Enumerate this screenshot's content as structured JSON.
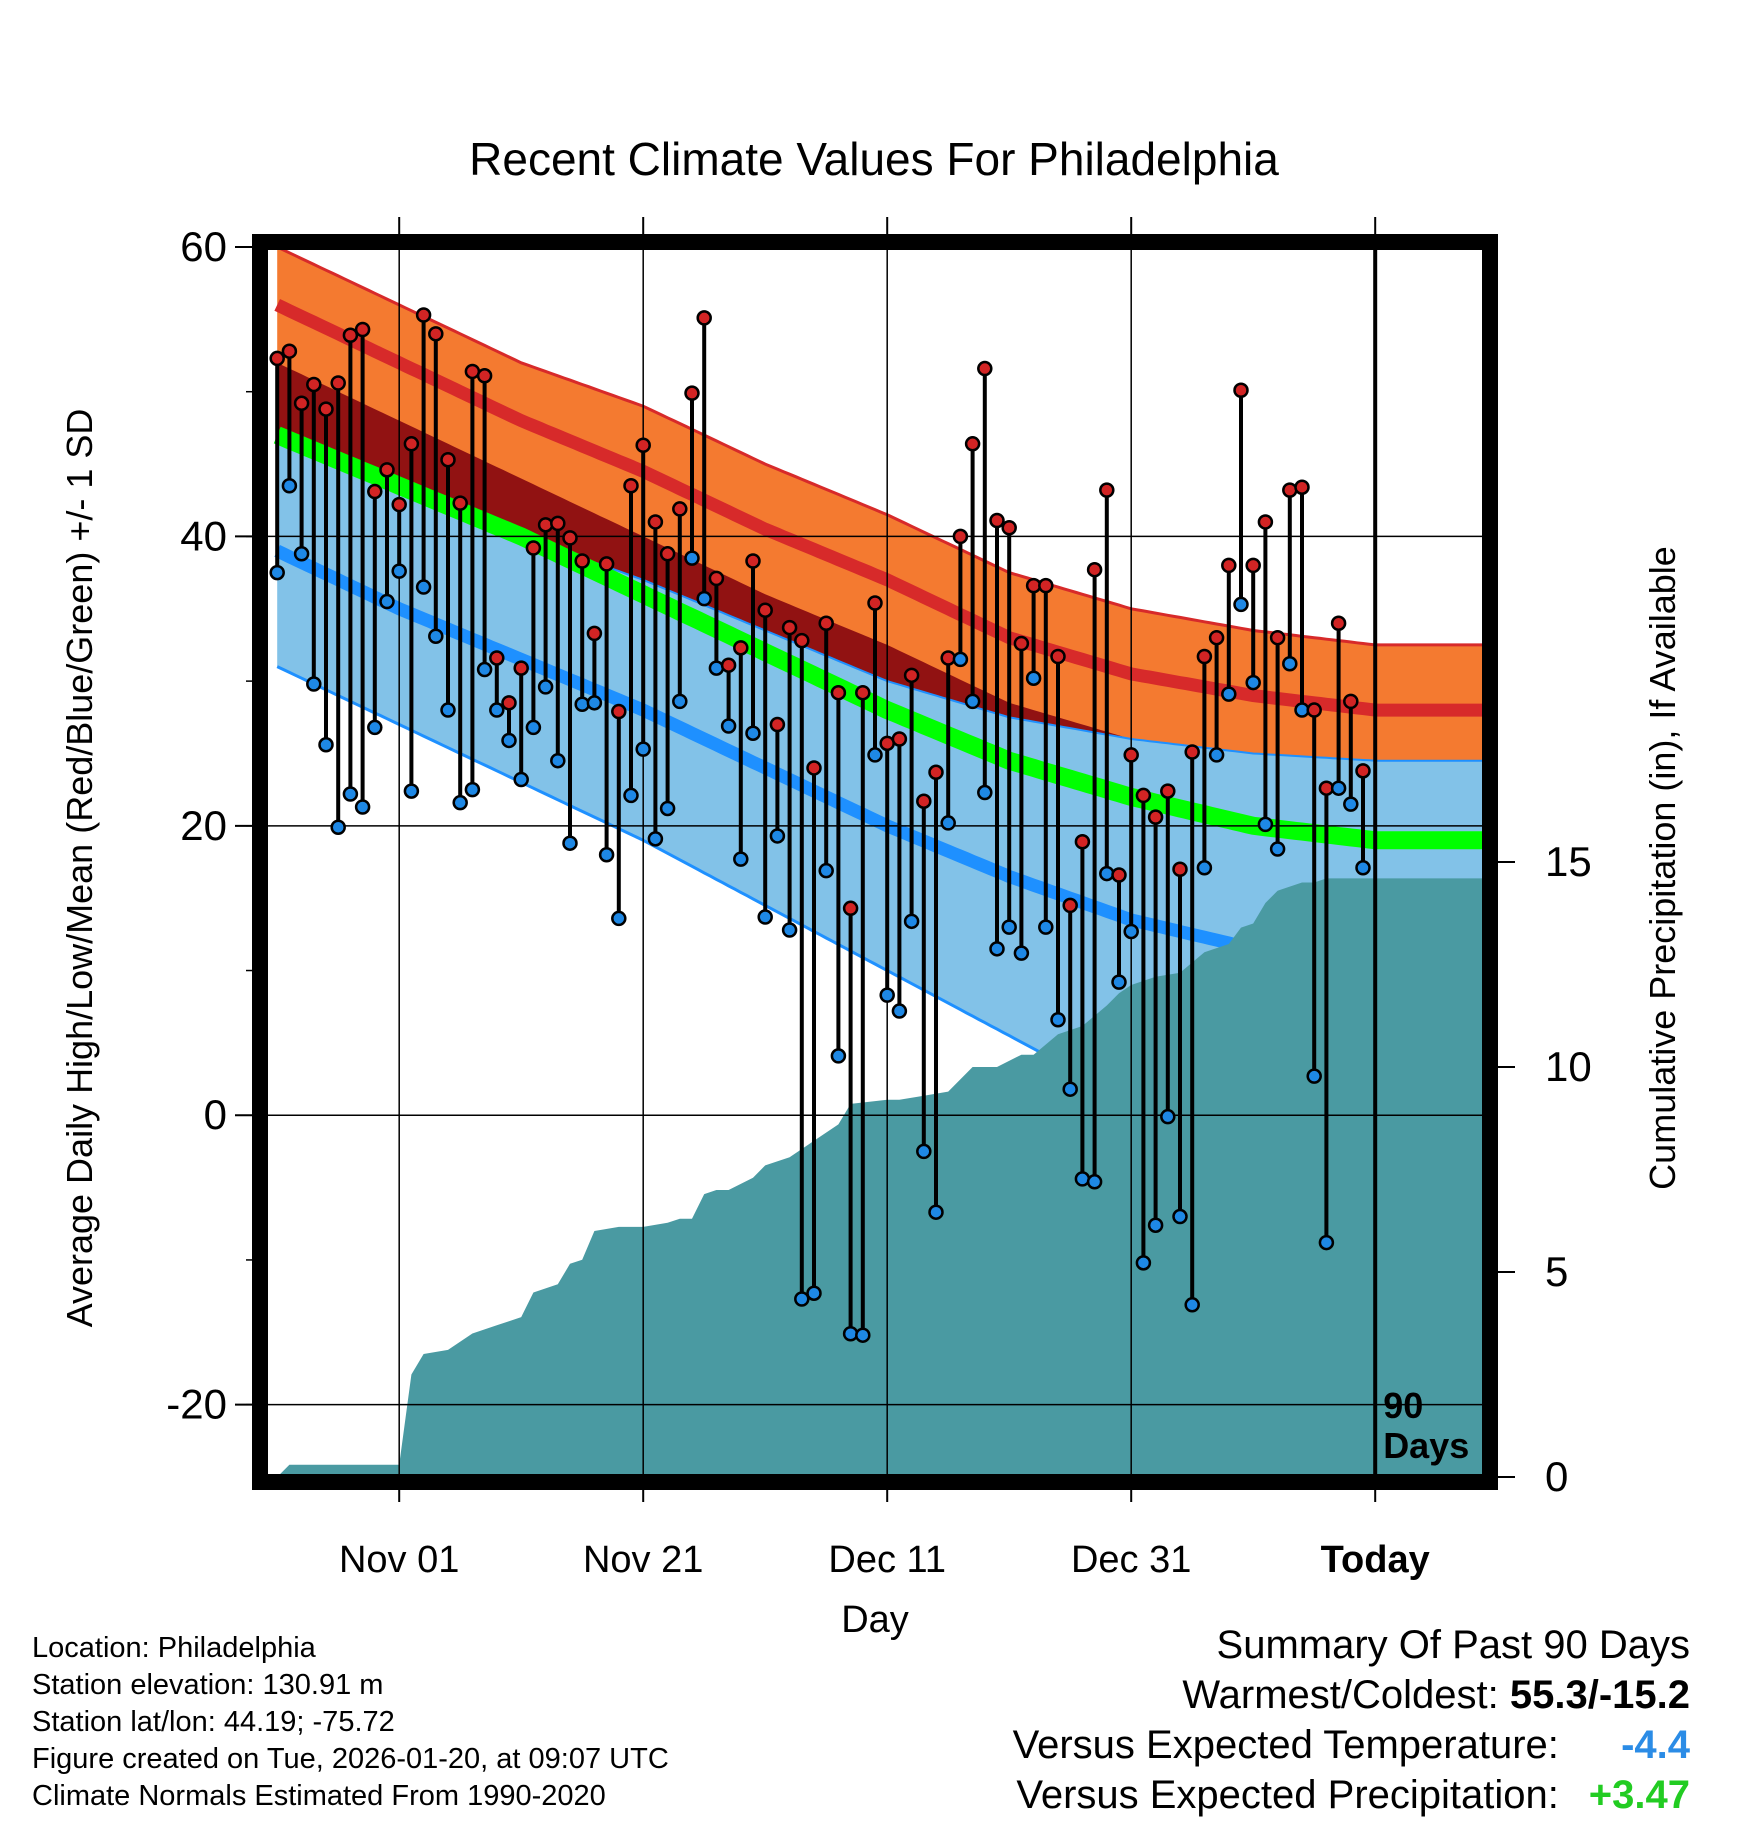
{
  "chart_data": {
    "type": "climate-range",
    "title": "Recent Climate Values For Philadelphia",
    "xlabel": "Day",
    "ylabel_left": "Average Daily High/Low/Mean (Red/Blue/Green) +/- 1 SD",
    "ylabel_right": "Cumulative Precipitation (in), If Available",
    "y_left_range": [
      -25,
      60
    ],
    "y_left_ticks": [
      "60",
      "40",
      "20",
      "0",
      "-20"
    ],
    "y_right_range": [
      0,
      30
    ],
    "y_right_ticks": [
      "0",
      "5",
      "10",
      "15"
    ],
    "x_range_days": [
      -91,
      9
    ],
    "x_ticks": [
      {
        "day": -80,
        "label": "Nov 01"
      },
      {
        "day": -60,
        "label": "Nov 21"
      },
      {
        "day": -40,
        "label": "Dec 11"
      },
      {
        "day": -20,
        "label": "Dec 31"
      },
      {
        "day": 0,
        "label": "Today"
      }
    ],
    "today_marker": {
      "day": 0,
      "label_line1": "90",
      "label_line2": "Days"
    },
    "normals": {
      "days": [
        -90,
        -80,
        -70,
        -60,
        -50,
        -40,
        -30,
        -20,
        -10,
        0,
        9
      ],
      "high_mean": [
        56,
        52,
        48,
        44.5,
        40.5,
        37,
        33,
        30.5,
        29,
        28,
        28
      ],
      "high_sd": [
        4,
        4,
        4,
        4.5,
        4.5,
        4.5,
        4.5,
        4.5,
        4.5,
        4.5,
        4.5
      ],
      "mean": [
        47,
        43.5,
        40,
        36,
        32,
        28,
        24.5,
        22,
        20,
        19,
        19
      ],
      "low_mean": [
        39,
        35,
        31.5,
        28,
        24,
        20,
        16.5,
        13.5,
        11.5,
        10.5,
        10.5
      ],
      "low_sd": [
        8,
        8,
        8.5,
        9,
        9.5,
        10,
        11,
        12.5,
        13.5,
        14,
        14
      ]
    },
    "daily_obs": {
      "start_day": -90,
      "high": [
        52.3,
        52.8,
        49.2,
        50.5,
        48.8,
        50.6,
        53.9,
        54.3,
        43.1,
        44.6,
        42.2,
        46.4,
        55.3,
        54.0,
        45.3,
        42.3,
        51.4,
        51.1,
        31.6,
        28.5,
        30.9,
        39.2,
        40.8,
        40.9,
        39.9,
        38.3,
        33.3,
        38.1,
        27.9,
        43.5,
        46.3,
        41.0,
        38.8,
        41.9,
        49.9,
        55.1,
        37.1,
        31.1,
        32.3,
        38.3,
        34.9,
        27.0,
        33.7,
        32.8,
        24.0,
        34.0,
        29.2,
        14.3,
        29.2,
        35.4,
        25.7,
        26.0,
        30.4,
        21.7,
        23.7,
        31.6,
        40.0,
        46.4,
        51.6,
        41.1,
        40.6,
        32.6,
        36.6,
        36.6,
        31.7,
        14.5,
        18.9,
        37.7,
        43.2,
        16.6,
        24.9,
        22.1,
        20.6,
        22.4,
        17.0,
        25.1,
        31.7,
        33.0,
        38.0,
        50.1,
        38.0,
        41.0,
        33.0,
        43.2,
        43.4,
        28.0,
        22.6,
        34.0,
        28.6,
        23.8
      ],
      "low": [
        37.5,
        43.5,
        38.8,
        29.8,
        25.6,
        19.9,
        22.2,
        21.3,
        26.8,
        35.5,
        37.6,
        22.4,
        36.5,
        33.1,
        28.0,
        21.6,
        22.5,
        30.8,
        28.0,
        25.9,
        23.2,
        26.8,
        29.6,
        24.5,
        18.8,
        28.4,
        28.5,
        18.0,
        13.6,
        22.1,
        25.3,
        19.1,
        21.2,
        28.6,
        38.5,
        35.7,
        30.9,
        26.9,
        17.7,
        26.4,
        13.7,
        19.3,
        12.8,
        -12.7,
        -12.3,
        16.9,
        4.1,
        -15.1,
        -15.2,
        24.9,
        8.3,
        7.2,
        13.4,
        -2.5,
        -6.7,
        20.2,
        31.5,
        28.6,
        22.3,
        11.5,
        13.0,
        11.2,
        30.2,
        13.0,
        6.6,
        1.8,
        -4.4,
        -4.6,
        16.7,
        9.2,
        12.7,
        -10.2,
        -7.6,
        -0.1,
        -7.0,
        -13.1,
        17.1,
        24.9,
        29.1,
        35.3,
        29.9,
        20.1,
        18.4,
        31.2,
        28.0,
        2.7,
        -8.8,
        22.6,
        21.5,
        17.1
      ]
    },
    "cumulative_precip": {
      "days": [
        -90,
        -89,
        -86,
        -85,
        -80,
        -79,
        -78,
        -76,
        -74,
        -73,
        -72,
        -71,
        -70,
        -69,
        -68,
        -67,
        -66,
        -65,
        -64,
        -62,
        -60,
        -58,
        -57,
        -56,
        -55,
        -54,
        -53,
        -51,
        -50,
        -48,
        -46,
        -44,
        -43,
        -40,
        -39,
        -37,
        -35,
        -33,
        -31,
        -29,
        -28,
        -26,
        -24,
        -22,
        -21,
        -20,
        -19,
        -18,
        -16,
        -14,
        -12,
        -11,
        -10,
        -9,
        -8,
        -6,
        -5,
        -4,
        -3,
        -2,
        0,
        2,
        9
      ],
      "values": [
        0,
        0.3,
        0.3,
        0.3,
        0.3,
        2.5,
        3,
        3.1,
        3.5,
        3.6,
        3.7,
        3.8,
        3.9,
        4.5,
        4.6,
        4.7,
        5.2,
        5.3,
        6.0,
        6.1,
        6.1,
        6.2,
        6.3,
        6.3,
        6.9,
        7.0,
        7.0,
        7.3,
        7.6,
        7.8,
        8.2,
        8.6,
        9.1,
        9.2,
        9.2,
        9.3,
        9.4,
        10.0,
        10.0,
        10.3,
        10.3,
        10.8,
        11.0,
        11.5,
        11.8,
        12.0,
        12.1,
        12.2,
        12.3,
        12.8,
        13.0,
        13.4,
        13.5,
        14.0,
        14.3,
        14.5,
        14.5,
        14.6,
        14.6,
        14.6,
        14.6,
        14.6,
        14.6
      ]
    }
  },
  "info": {
    "location": "Location: Philadelphia",
    "elevation": "Station elevation: 130.91 m",
    "latlon": "Station lat/lon: 44.19; -75.72",
    "created": "Figure created on Tue, 2026-01-20, at 09:07 UTC",
    "normals": "Climate Normals Estimated From 1990-2020"
  },
  "summary": {
    "title": "Summary Of Past 90 Days",
    "warmest_label": "Warmest/Coldest:",
    "warmest_value": "55.3/-15.2",
    "temp_label": "Versus Expected Temperature:",
    "temp_value": "-4.4",
    "precip_label": "Versus Expected Precipitation:",
    "precip_value": "+3.47"
  },
  "colors": {
    "high_band": "#f47a30",
    "high_line": "#d72a2a",
    "mean_band_above": "#911212",
    "mean_line": "#00ff00",
    "low_band": "#82c2e8",
    "low_line": "#1e90ff",
    "precip": "#4a9aa2",
    "high_dot": "#d22424",
    "low_dot": "#1e88e5",
    "temp_value": "#2b8ce6",
    "precip_value": "#22cc22"
  }
}
